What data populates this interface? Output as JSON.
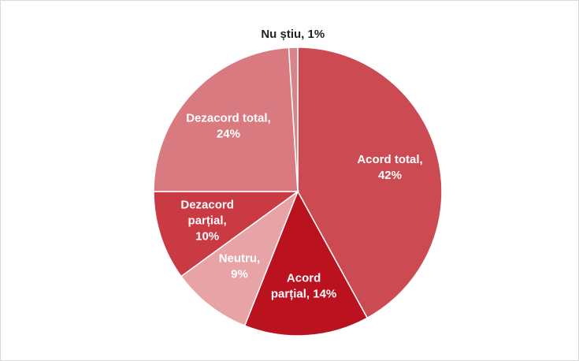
{
  "chart_data": {
    "type": "pie",
    "labels": [
      [
        "Acord total,",
        "42%"
      ],
      [
        "Acord",
        "parțial, 14%"
      ],
      [
        "Neutru,",
        "9%"
      ],
      [
        "Dezacord",
        "parțial,",
        "10%"
      ],
      [
        "Dezacord total,",
        "24%"
      ],
      [
        "Nu știu, 1%"
      ]
    ],
    "values": [
      42,
      14,
      9,
      10,
      24,
      1
    ],
    "colors": [
      "#cc4a52",
      "#bb1220",
      "#e8a3a6",
      "#c93a43",
      "#d97a80",
      "#d6858a"
    ]
  }
}
